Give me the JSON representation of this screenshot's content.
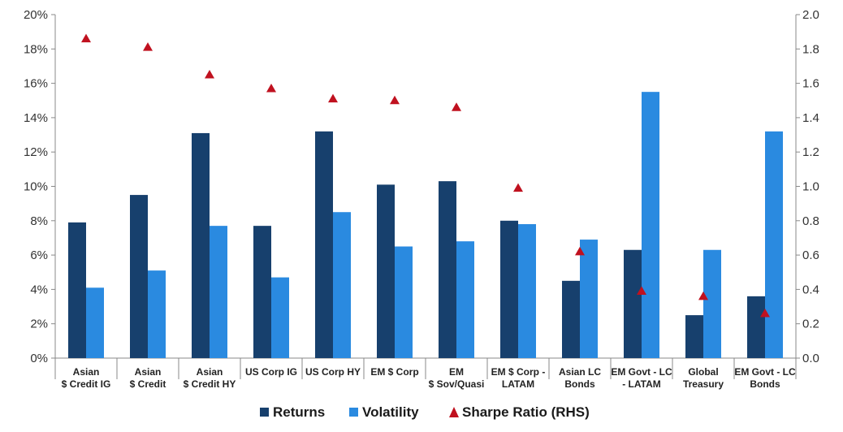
{
  "chart_data": {
    "type": "bar",
    "categories": [
      [
        "Asian",
        "$ Credit IG"
      ],
      [
        "Asian",
        "$ Credit"
      ],
      [
        "Asian",
        "$ Credit HY"
      ],
      [
        "US Corp IG"
      ],
      [
        "US Corp HY"
      ],
      [
        "EM $ Corp"
      ],
      [
        "EM",
        "$ Sov/Quasi"
      ],
      [
        "EM $ Corp -",
        "LATAM"
      ],
      [
        "Asian LC",
        "Bonds"
      ],
      [
        "EM Govt - LC",
        "- LATAM"
      ],
      [
        "Global",
        "Treasury"
      ],
      [
        "EM Govt - LC",
        "Bonds"
      ]
    ],
    "series": [
      {
        "name": "Returns",
        "kind": "bar",
        "axis": "left",
        "color": "#17406d",
        "values": [
          7.9,
          9.5,
          13.1,
          7.7,
          13.2,
          10.1,
          10.3,
          8.0,
          4.5,
          6.3,
          2.5,
          3.6
        ]
      },
      {
        "name": "Volatility",
        "kind": "bar",
        "axis": "left",
        "color": "#2a8ae0",
        "values": [
          4.1,
          5.1,
          7.7,
          4.7,
          8.5,
          6.5,
          6.8,
          7.8,
          6.9,
          15.5,
          6.3,
          13.2
        ]
      },
      {
        "name": "Sharpe Ratio (RHS)",
        "kind": "marker",
        "axis": "right",
        "color": "#c0111f",
        "values": [
          1.86,
          1.81,
          1.65,
          1.57,
          1.51,
          1.5,
          1.46,
          0.99,
          0.62,
          0.39,
          0.36,
          0.26
        ]
      }
    ],
    "y_left": {
      "min": 0,
      "max": 20,
      "step": 2,
      "ticks": [
        "0%",
        "2%",
        "4%",
        "6%",
        "8%",
        "10%",
        "12%",
        "14%",
        "16%",
        "18%",
        "20%"
      ]
    },
    "y_right": {
      "min": 0,
      "max": 2.0,
      "step": 0.2,
      "ticks": [
        "0.0",
        "0.2",
        "0.4",
        "0.6",
        "0.8",
        "1.0",
        "1.2",
        "1.4",
        "1.6",
        "1.8",
        "2.0"
      ]
    },
    "grid": false,
    "legend_position": "bottom-center"
  }
}
